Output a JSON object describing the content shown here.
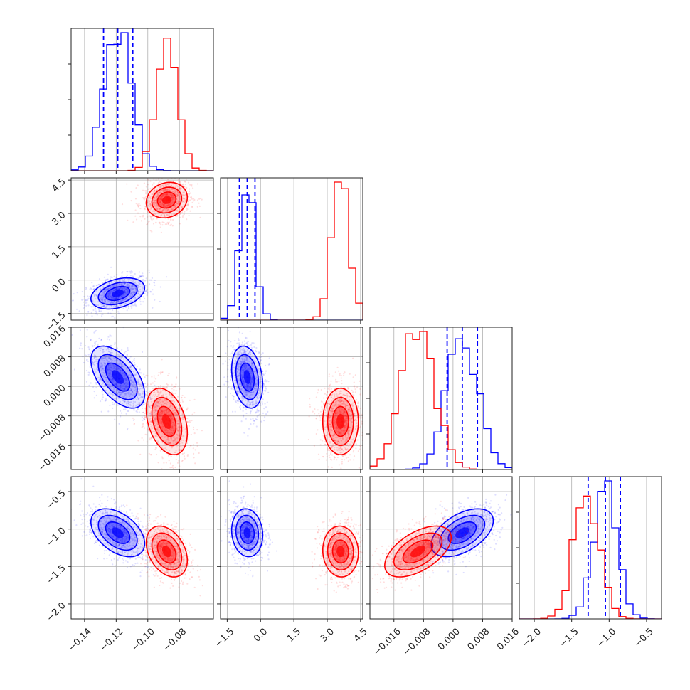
{
  "chart_data": {
    "type": "corner",
    "colors": {
      "blue": "#0000ff",
      "red": "#ff0000"
    },
    "parameters": [
      {
        "ticks": [
          -0.14,
          -0.12,
          -0.1,
          -0.08
        ],
        "tick_labels": [
          "−0.14",
          "−0.12",
          "−0.10",
          "−0.08"
        ],
        "range": [
          -0.1485,
          -0.0585
        ]
      },
      {
        "ticks": [
          -1.5,
          0.0,
          1.5,
          3.0,
          4.5
        ],
        "tick_labels": [
          "−1.5",
          "0.0",
          "1.5",
          "3.0",
          "4.5"
        ],
        "range": [
          -1.8,
          4.6
        ]
      },
      {
        "ticks": [
          -0.016,
          -0.008,
          0.0,
          0.008,
          0.016
        ],
        "tick_labels": [
          "−0.016",
          "−0.008",
          "0.000",
          "0.008",
          "0.016"
        ],
        "range": [
          -0.0225,
          0.016
        ]
      },
      {
        "ticks": [
          -2.0,
          -1.5,
          -1.0,
          -0.5
        ],
        "tick_labels": [
          "−2.0",
          "−1.5",
          "−1.0",
          "−0.5"
        ],
        "range": [
          -2.2,
          -0.3
        ]
      }
    ],
    "series": [
      {
        "color": "#0000ff",
        "means": [
          -0.119,
          -0.6,
          0.0025,
          -1.05
        ],
        "sigmas": [
          0.0085,
          0.35,
          0.0042,
          0.16
        ],
        "quantiles": [
          [
            -0.128,
            -0.119,
            -0.1095
          ],
          [
            -0.95,
            -0.6,
            -0.25
          ],
          [
            -0.0016,
            0.0025,
            0.0066
          ],
          [
            -1.28,
            -1.05,
            -0.85
          ]
        ],
        "correlations": {
          "0-1": 0.35,
          "0-2": -0.55,
          "0-3": -0.45,
          "1-2": -0.25,
          "1-3": -0.1,
          "2-3": 0.5
        }
      },
      {
        "color": "#ff0000",
        "means": [
          -0.088,
          3.6,
          -0.0095,
          -1.3
        ],
        "sigmas": [
          0.0065,
          0.4,
          0.0045,
          0.17
        ],
        "quantiles": null,
        "correlations": {
          "0-1": 0.15,
          "0-2": -0.35,
          "0-3": -0.35,
          "1-2": 0.0,
          "1-3": -0.05,
          "2-3": 0.55
        }
      }
    ],
    "grid": true,
    "histogram_bins": 20
  }
}
